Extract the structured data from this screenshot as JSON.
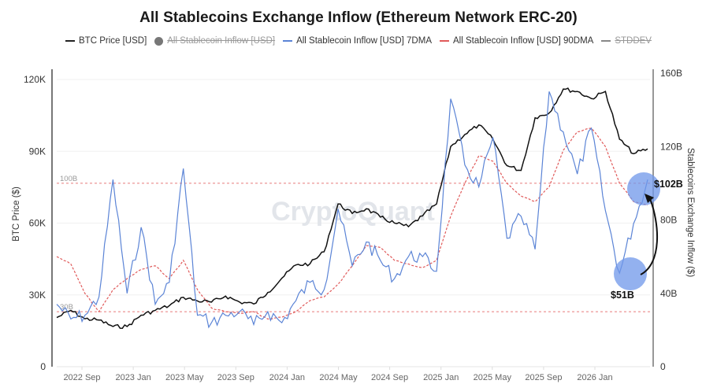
{
  "chart_data": {
    "type": "line",
    "title": "All Stablecoins Exchange Inflow (Ethereum Network ERC-20)",
    "watermark": "CryptoQuant",
    "legend": [
      {
        "label": "BTC Price [USD]",
        "style": "solid",
        "color": "#111111",
        "enabled": true
      },
      {
        "label": "All Stablecoin Inflow [USD]",
        "style": "dot",
        "color": "#777777",
        "enabled": false
      },
      {
        "label": "All Stablecoin Inflow [USD] 7DMA",
        "style": "solid",
        "color": "#5b84d6",
        "enabled": true
      },
      {
        "label": "All Stablecoin Inflow [USD] 90DMA",
        "style": "dashed",
        "color": "#e05a5a",
        "enabled": true
      },
      {
        "label": "STDDEV",
        "style": "solid",
        "color": "#888888",
        "enabled": false
      }
    ],
    "x_tick_labels": [
      "2022 Sep",
      "2023 Jan",
      "2023 May",
      "2023 Sep",
      "2024 Jan",
      "2024 May",
      "2024 Sep",
      "2025 Jan",
      "2025 May",
      "2025 Sep",
      "2026 Jan"
    ],
    "xlabel": "",
    "y_left": {
      "label": "BTC Price ($)",
      "ticks": [
        "0",
        "30K",
        "60K",
        "90K",
        "120K"
      ],
      "range": [
        0,
        124000
      ]
    },
    "y_right": {
      "label": "Stablecoins Exchange Inflow ($)",
      "ticks": [
        "0",
        "40B",
        "80B",
        "120B",
        "160B"
      ],
      "range": [
        0,
        160000000000
      ]
    },
    "reference_lines": [
      {
        "label": "100B",
        "value_billion": 100,
        "axis": "right",
        "style": "dashed",
        "color": "#e05a5a"
      },
      {
        "label": "30B",
        "value_billion": 30,
        "axis": "right",
        "style": "dashed",
        "color": "#e05a5a"
      }
    ],
    "x": [
      "2022-07",
      "2022-08",
      "2022-09",
      "2022-10",
      "2022-11",
      "2022-12",
      "2023-01",
      "2023-02",
      "2023-03",
      "2023-04",
      "2023-05",
      "2023-06",
      "2023-07",
      "2023-08",
      "2023-09",
      "2023-10",
      "2023-11",
      "2023-12",
      "2024-01",
      "2024-02",
      "2024-03",
      "2024-04",
      "2024-05",
      "2024-06",
      "2024-07",
      "2024-08",
      "2024-09",
      "2024-10",
      "2024-11",
      "2024-12",
      "2025-01",
      "2025-02",
      "2025-03",
      "2025-04",
      "2025-05",
      "2025-06",
      "2025-07",
      "2025-08",
      "2025-09",
      "2025-10",
      "2025-11",
      "2025-12",
      "2026-01"
    ],
    "series": [
      {
        "name": "BTC Price [USD]",
        "axis": "left",
        "unit": "USD",
        "values": [
          20500,
          23500,
          20000,
          19500,
          16800,
          16800,
          21500,
          23500,
          25500,
          29000,
          27500,
          27000,
          29500,
          27000,
          26200,
          31000,
          37000,
          42500,
          43000,
          48000,
          68000,
          64000,
          66000,
          62500,
          60000,
          58500,
          63000,
          68000,
          92000,
          97000,
          101000,
          95000,
          84000,
          82000,
          104000,
          106000,
          116000,
          115000,
          112000,
          115000,
          95000,
          89000,
          91000
        ]
      },
      {
        "name": "All Stablecoin Inflow [USD] 7DMA",
        "axis": "right",
        "unit": "USD billions",
        "values": [
          34,
          26,
          28,
          38,
          102,
          40,
          76,
          34,
          46,
          108,
          28,
          24,
          28,
          30,
          23,
          30,
          24,
          36,
          46,
          42,
          86,
          55,
          68,
          58,
          48,
          60,
          60,
          52,
          146,
          110,
          98,
          125,
          70,
          82,
          64,
          150,
          128,
          105,
          130,
          85,
          51,
          78,
          102
        ]
      },
      {
        "name": "All Stablecoin Inflow [USD] 90DMA",
        "axis": "right",
        "unit": "USD billions",
        "values": [
          60,
          56,
          40,
          30,
          42,
          48,
          53,
          55,
          48,
          58,
          42,
          32,
          30,
          29,
          30,
          26,
          27,
          30,
          36,
          38,
          45,
          55,
          66,
          65,
          58,
          56,
          54,
          58,
          82,
          100,
          115,
          112,
          100,
          93,
          90,
          98,
          118,
          128,
          130,
          120,
          100,
          90,
          88
        ]
      }
    ],
    "annotations": [
      {
        "label": "$51B",
        "x": "2025-11",
        "value_billion": 51,
        "highlight": "circle"
      },
      {
        "label": "$102B",
        "x": "2026-01",
        "value_billion": 102,
        "highlight": "circle"
      },
      {
        "label": "arrow",
        "from": "$51B",
        "to": "$102B"
      }
    ]
  }
}
